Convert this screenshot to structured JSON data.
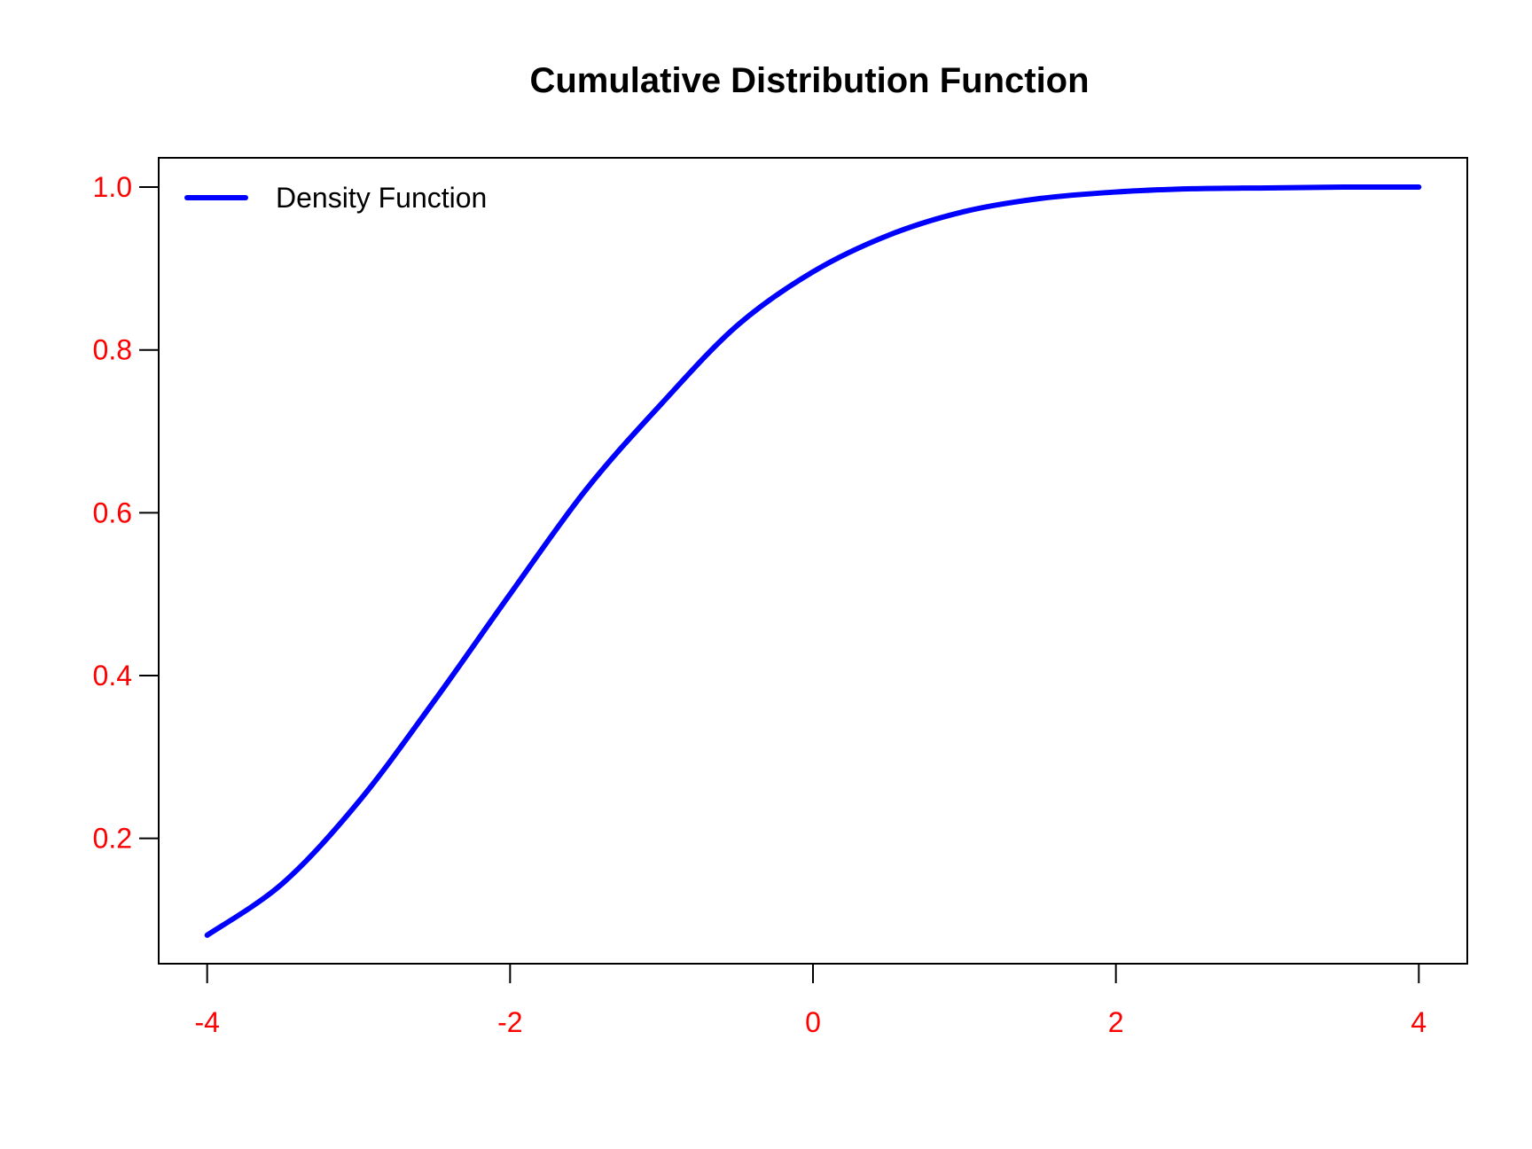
{
  "chart_data": {
    "type": "line",
    "title": "Cumulative Distribution Function",
    "xlabel": "",
    "ylabel": "",
    "xlim": [
      -4.32,
      4.32
    ],
    "ylim": [
      0.046,
      1.036
    ],
    "x_ticks": [
      -4,
      -2,
      0,
      2,
      4
    ],
    "x_tick_labels": [
      "-4",
      "-2",
      "0",
      "2",
      "4"
    ],
    "y_ticks": [
      0.2,
      0.4,
      0.6,
      0.8,
      1.0
    ],
    "y_tick_labels": [
      "0.2",
      "0.4",
      "0.6",
      "0.8",
      "1.0"
    ],
    "tick_label_color": "#ff0000",
    "grid": false,
    "legend": {
      "position": "top-left",
      "entries": [
        "Density Function"
      ]
    },
    "series": [
      {
        "name": "Density Function",
        "color": "#0000ff",
        "x": [
          -4,
          -3.5,
          -3,
          -2.5,
          -2,
          -1.5,
          -1,
          -0.5,
          0,
          0.5,
          1,
          1.5,
          2,
          2.5,
          3,
          3.5,
          4
        ],
        "y": [
          0.081,
          0.145,
          0.245,
          0.369,
          0.5,
          0.628,
          0.734,
          0.83,
          0.896,
          0.941,
          0.97,
          0.986,
          0.994,
          0.998,
          0.999,
          1.0,
          1.0
        ]
      }
    ]
  }
}
